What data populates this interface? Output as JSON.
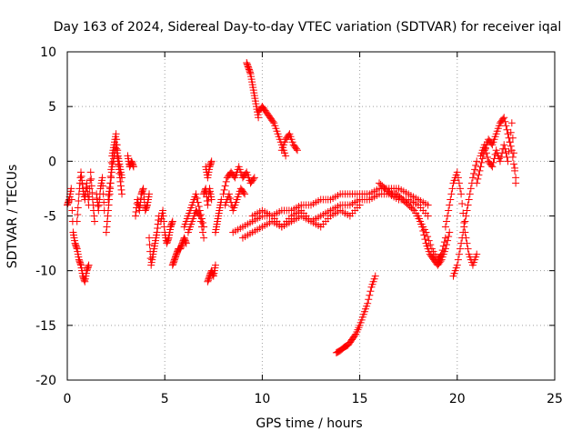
{
  "chart_data": {
    "type": "scatter",
    "title": "Day 163 of 2024, Sidereal Day-to-day VTEC variation (SDTVAR) for receiver iqal",
    "xlabel": "GPS time / hours",
    "ylabel": "SDTVAR / TECUs",
    "xlim": [
      0,
      25
    ],
    "ylim": [
      -20,
      10
    ],
    "x_ticks": [
      0,
      5,
      10,
      15,
      20,
      25
    ],
    "y_ticks": [
      -20,
      -15,
      -10,
      -5,
      0,
      5,
      10
    ],
    "x_tick_labels": [
      "0",
      "5",
      "10",
      "15",
      "20",
      "25"
    ],
    "y_tick_labels": [
      "-20",
      "-15",
      "-10",
      "-5",
      "0",
      "5",
      "10"
    ],
    "grid": true,
    "marker": "+",
    "marker_color": "#ff0000",
    "series": [
      {
        "name": "SDTVAR",
        "segments": [
          {
            "x": [
              0.0,
              0.1,
              0.2,
              0.3,
              0.4,
              0.5,
              0.6,
              0.7,
              0.8,
              0.9,
              1.0,
              1.1
            ],
            "y": [
              -4.0,
              -3.5,
              -2.5,
              -6.5,
              -7.5,
              -8.0,
              -9.0,
              -9.5,
              -10.5,
              -11.0,
              -10.0,
              -9.5
            ]
          },
          {
            "x": [
              0.5,
              0.6,
              0.7,
              0.8,
              0.9,
              1.0,
              1.1,
              1.2,
              1.3,
              1.4
            ],
            "y": [
              -5.5,
              -3.0,
              -1.0,
              -2.5,
              -3.5,
              -2.0,
              -4.0,
              -1.0,
              -3.5,
              -5.5
            ]
          },
          {
            "x": [
              1.5,
              1.6,
              1.7,
              1.8,
              1.9
            ],
            "y": [
              -3.0,
              -4.5,
              -2.5,
              -1.5,
              -4.5
            ]
          },
          {
            "x": [
              2.0,
              2.1,
              2.2,
              2.3,
              2.4,
              2.5,
              2.6,
              2.7,
              2.8
            ],
            "y": [
              -6.5,
              -4.5,
              -2.5,
              -0.5,
              0.5,
              1.5,
              0.0,
              -1.5,
              -3.0
            ]
          },
          {
            "x": [
              2.1,
              2.2,
              2.3,
              2.4,
              2.5,
              2.6,
              2.7,
              2.8
            ],
            "y": [
              -3.5,
              -2.0,
              0.5,
              1.5,
              2.5,
              0.5,
              -0.5,
              -1.5
            ]
          },
          {
            "x": [
              3.1,
              3.2,
              3.3,
              3.4
            ],
            "y": [
              0.5,
              -0.5,
              0.0,
              -0.5
            ]
          },
          {
            "x": [
              3.5,
              3.6,
              3.7,
              3.8,
              3.9,
              4.0,
              4.1,
              4.2
            ],
            "y": [
              -5.0,
              -3.5,
              -4.5,
              -3.0,
              -2.5,
              -4.5,
              -4.0,
              -3.0
            ]
          },
          {
            "x": [
              4.2,
              4.3,
              4.4,
              4.5,
              4.6,
              4.7
            ],
            "y": [
              -7.0,
              -9.5,
              -8.5,
              -7.5,
              -6.5,
              -5.0
            ]
          },
          {
            "x": [
              4.8,
              4.9,
              5.0,
              5.1,
              5.2,
              5.3,
              5.4
            ],
            "y": [
              -5.5,
              -4.5,
              -6.5,
              -7.5,
              -7.0,
              -6.0,
              -5.5
            ]
          },
          {
            "x": [
              5.4,
              5.5,
              5.6,
              5.7,
              5.8,
              5.9,
              6.0,
              6.1
            ],
            "y": [
              -9.5,
              -9.0,
              -8.5,
              -8.0,
              -8.0,
              -7.5,
              -7.0,
              -7.5
            ]
          },
          {
            "x": [
              6.0,
              6.2,
              6.4,
              6.6,
              6.8,
              7.0
            ],
            "y": [
              -6.0,
              -5.0,
              -4.0,
              -3.0,
              -4.5,
              -6.0
            ]
          },
          {
            "x": [
              6.2,
              6.4,
              6.6,
              6.8,
              7.0
            ],
            "y": [
              -6.5,
              -5.5,
              -4.5,
              -5.0,
              -7.0
            ]
          },
          {
            "x": [
              7.0,
              7.1,
              7.2,
              7.3,
              7.4
            ],
            "y": [
              -3.0,
              -2.5,
              -4.0,
              -2.5,
              -3.5
            ]
          },
          {
            "x": [
              7.1,
              7.2,
              7.3,
              7.4
            ],
            "y": [
              -0.5,
              -1.5,
              -0.5,
              0.0
            ]
          },
          {
            "x": [
              7.2,
              7.3,
              7.4,
              7.5,
              7.6
            ],
            "y": [
              -11.0,
              -10.5,
              -10.0,
              -10.5,
              -9.5
            ]
          },
          {
            "x": [
              7.6,
              7.7,
              7.8,
              7.9
            ],
            "y": [
              -6.5,
              -5.5,
              -4.5,
              -3.5
            ]
          },
          {
            "x": [
              8.0,
              8.2,
              8.4,
              8.6,
              8.8,
              9.0,
              9.2,
              9.4,
              9.6
            ],
            "y": [
              -3.0,
              -1.5,
              -1.0,
              -1.5,
              -0.5,
              -1.5,
              -1.0,
              -2.0,
              -1.5
            ]
          },
          {
            "x": [
              8.1,
              8.3,
              8.5,
              8.7,
              8.9,
              9.1
            ],
            "y": [
              -4.0,
              -3.0,
              -4.5,
              -3.5,
              -2.5,
              -3.0
            ]
          },
          {
            "x": [
              8.5,
              9.0,
              9.5,
              10.0,
              10.5,
              11.0,
              11.5,
              12.0,
              12.5,
              13.0,
              13.5,
              14.0,
              14.5,
              15.0,
              15.5,
              16.0,
              16.5,
              17.0,
              17.5,
              18.0,
              18.5
            ],
            "y": [
              -6.5,
              -6.0,
              -5.5,
              -5.0,
              -5.0,
              -4.5,
              -4.5,
              -4.0,
              -4.0,
              -3.5,
              -3.5,
              -3.0,
              -3.0,
              -3.0,
              -3.0,
              -2.5,
              -2.5,
              -2.5,
              -3.0,
              -3.5,
              -4.0
            ]
          },
          {
            "x": [
              9.0,
              9.5,
              10.0,
              10.5,
              11.0,
              11.5,
              12.0,
              12.5,
              13.0,
              13.5,
              14.0,
              14.5,
              15.0,
              15.5,
              16.0,
              16.5,
              17.0,
              17.5,
              18.0,
              18.5
            ],
            "y": [
              -7.0,
              -6.5,
              -6.0,
              -5.5,
              -6.0,
              -5.5,
              -5.0,
              -5.5,
              -5.0,
              -4.5,
              -4.0,
              -4.0,
              -3.5,
              -3.5,
              -3.0,
              -3.0,
              -3.5,
              -3.5,
              -4.0,
              -5.0
            ]
          },
          {
            "x": [
              9.5,
              10.0,
              10.5,
              11.0,
              11.5,
              12.0,
              12.5,
              13.0,
              13.5,
              14.0,
              14.5,
              15.0
            ],
            "y": [
              -5.0,
              -4.5,
              -5.0,
              -6.0,
              -5.0,
              -4.5,
              -5.5,
              -6.0,
              -5.0,
              -4.5,
              -5.0,
              -4.0
            ]
          },
          {
            "x": [
              16.0,
              16.3,
              16.6,
              16.9,
              17.2,
              17.5,
              17.8,
              18.1,
              18.4,
              18.7,
              19.0,
              19.2,
              19.4
            ],
            "y": [
              -2.0,
              -2.5,
              -3.0,
              -3.0,
              -3.5,
              -4.0,
              -4.5,
              -5.5,
              -6.5,
              -8.0,
              -9.0,
              -8.5,
              -7.0
            ]
          },
          {
            "x": [
              18.0,
              18.2,
              18.4,
              18.6,
              18.8,
              19.0,
              19.2,
              19.4,
              19.6
            ],
            "y": [
              -5.0,
              -6.0,
              -7.5,
              -8.5,
              -9.0,
              -9.5,
              -9.0,
              -8.0,
              -6.5
            ]
          },
          {
            "x": [
              9.2,
              9.3,
              9.4,
              9.5,
              9.6,
              9.7,
              9.8
            ],
            "y": [
              9.0,
              8.5,
              8.0,
              7.0,
              6.0,
              5.0,
              4.0
            ]
          },
          {
            "x": [
              9.8,
              10.0,
              10.2,
              10.4,
              10.6,
              10.8,
              11.0,
              11.2
            ],
            "y": [
              4.5,
              5.0,
              4.5,
              4.0,
              3.5,
              2.5,
              1.5,
              0.5
            ]
          },
          {
            "x": [
              11.0,
              11.2,
              11.4,
              11.6,
              11.8
            ],
            "y": [
              1.0,
              2.0,
              2.5,
              1.5,
              1.0
            ]
          },
          {
            "x": [
              13.8,
              14.0,
              14.2,
              14.4,
              14.6,
              14.8,
              15.0,
              15.2,
              15.4,
              15.6,
              15.8
            ],
            "y": [
              -17.5,
              -17.3,
              -17.0,
              -16.8,
              -16.3,
              -15.8,
              -15.0,
              -14.0,
              -13.0,
              -11.5,
              -10.5
            ]
          },
          {
            "x": [
              19.4,
              19.6,
              19.8,
              20.0,
              20.2,
              20.4,
              20.6,
              20.8,
              21.0
            ],
            "y": [
              -6.0,
              -4.0,
              -2.0,
              -1.0,
              -3.0,
              -6.5,
              -8.5,
              -9.5,
              -8.5
            ]
          },
          {
            "x": [
              19.8,
              20.0,
              20.2,
              20.4,
              20.6,
              20.8,
              21.0
            ],
            "y": [
              -10.5,
              -9.5,
              -7.5,
              -5.5,
              -3.5,
              -1.5,
              0.0
            ]
          },
          {
            "x": [
              21.0,
              21.2,
              21.4,
              21.6,
              21.8,
              22.0,
              22.2,
              22.4,
              22.6,
              22.8,
              23.0
            ],
            "y": [
              -2.0,
              -0.5,
              1.0,
              2.0,
              1.5,
              2.5,
              3.5,
              4.0,
              2.5,
              1.0,
              -1.5
            ]
          },
          {
            "x": [
              21.2,
              21.4,
              21.6,
              21.8,
              22.0,
              22.2,
              22.4,
              22.6,
              22.8,
              23.0
            ],
            "y": [
              0.5,
              1.5,
              0.0,
              -0.5,
              1.0,
              0.0,
              1.5,
              0.0,
              3.5,
              -2.0
            ]
          }
        ]
      }
    ]
  }
}
